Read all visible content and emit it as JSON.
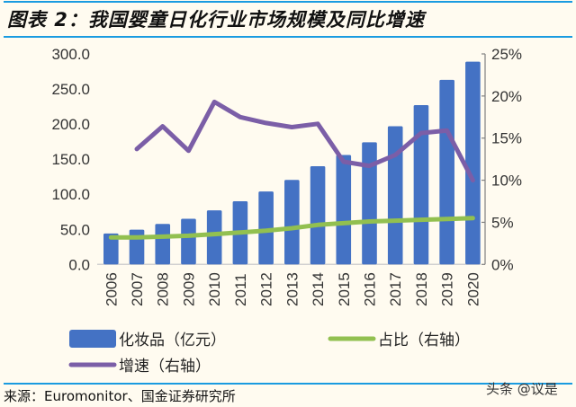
{
  "title": "图表 2：我国婴童日化行业市场规模及同比增速",
  "source": "来源：Euromonitor、国金证券研究所",
  "watermark": "头条 @议是",
  "chart_data": {
    "type": "bar+line",
    "categories": [
      "2006",
      "2007",
      "2008",
      "2009",
      "2010",
      "2011",
      "2012",
      "2013",
      "2014",
      "2015",
      "2016",
      "2017",
      "2018",
      "2019",
      "2020"
    ],
    "left_axis": {
      "ylim": [
        0,
        300
      ],
      "ticks": [
        "0.0",
        "50.0",
        "100.0",
        "150.0",
        "200.0",
        "250.0",
        "300.0"
      ]
    },
    "right_axis": {
      "ylim": [
        0,
        25
      ],
      "ticks": [
        "0%",
        "5%",
        "10%",
        "15%",
        "20%",
        "25%"
      ]
    },
    "series": [
      {
        "name": "化妆品（亿元）",
        "type": "bar",
        "axis": "left",
        "color": "#4472c4",
        "values": [
          44,
          49.5,
          57.7,
          65,
          77,
          90,
          104,
          120.5,
          140,
          156,
          174,
          197,
          227,
          263,
          289
        ]
      },
      {
        "name": "占比（右轴）",
        "type": "line",
        "axis": "right",
        "color": "#92c050",
        "values": [
          3.2,
          3.2,
          3.3,
          3.4,
          3.6,
          3.8,
          4.0,
          4.3,
          4.7,
          4.9,
          5.1,
          5.2,
          5.3,
          5.4,
          5.5
        ]
      },
      {
        "name": "增速（右轴）",
        "type": "line",
        "axis": "right",
        "color": "#7b5ea7",
        "values": [
          null,
          13.7,
          16.4,
          13.5,
          19.3,
          17.5,
          16.8,
          16.3,
          16.7,
          12.2,
          11.7,
          13.0,
          15.6,
          15.9,
          10.0
        ]
      }
    ],
    "legend_position": "bottom",
    "grid": false
  }
}
